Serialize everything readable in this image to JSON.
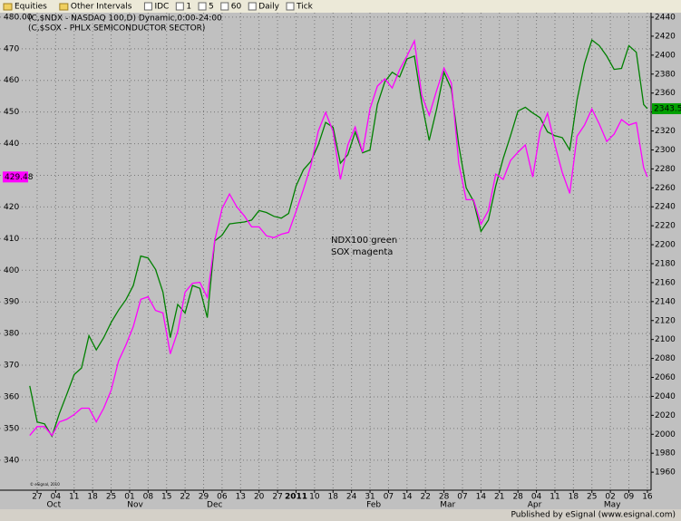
{
  "toolbar": [
    "Equities",
    "Other Intervals",
    "IDC",
    "1",
    "5",
    "60",
    "Daily",
    "Tick"
  ],
  "footer": "Published by eSignal (www.esignal.com)",
  "chart_data": {
    "type": "line",
    "annotations": [
      "NDX100 green",
      "SOX magenta"
    ],
    "watermark": "© eSignal, 2010",
    "grid": true,
    "x": [
      -2,
      0,
      2,
      4,
      6,
      8,
      10,
      12,
      14,
      16,
      18,
      20,
      22,
      24,
      26,
      28,
      30,
      32,
      34,
      36,
      38,
      40,
      42,
      44,
      46,
      48,
      50,
      52,
      54,
      56,
      58,
      60,
      62,
      64,
      66,
      68,
      70,
      72,
      74,
      76,
      78,
      80,
      82,
      84,
      86,
      88,
      90,
      92,
      94,
      96,
      98,
      100,
      102,
      104,
      106,
      108,
      110,
      112,
      114,
      116,
      118,
      120,
      122,
      124,
      126,
      128,
      130,
      132,
      134,
      136,
      138,
      140,
      142,
      144,
      146,
      148,
      150,
      152,
      154,
      156,
      158,
      160,
      162,
      164,
      165
    ],
    "xlim": [
      -10.05,
      166
    ],
    "xticks": [
      {
        "value": 0,
        "label": "27"
      },
      {
        "value": 5,
        "label": "04"
      },
      {
        "value": 10,
        "label": "11"
      },
      {
        "value": 15,
        "label": "18"
      },
      {
        "value": 20,
        "label": "25"
      },
      {
        "value": 25,
        "label": "01"
      },
      {
        "value": 30,
        "label": "08"
      },
      {
        "value": 35,
        "label": "15"
      },
      {
        "value": 40,
        "label": "22"
      },
      {
        "value": 45,
        "label": "29"
      },
      {
        "value": 50,
        "label": "06"
      },
      {
        "value": 55,
        "label": "13"
      },
      {
        "value": 60,
        "label": "20"
      },
      {
        "value": 65,
        "label": "27"
      },
      {
        "value": 70,
        "label": "2011"
      },
      {
        "value": 75,
        "label": "10"
      },
      {
        "value": 80,
        "label": "18"
      },
      {
        "value": 85,
        "label": "24"
      },
      {
        "value": 90,
        "label": "31"
      },
      {
        "value": 95,
        "label": "07"
      },
      {
        "value": 100,
        "label": "14"
      },
      {
        "value": 105,
        "label": "22"
      },
      {
        "value": 110,
        "label": "28"
      },
      {
        "value": 115,
        "label": "07"
      },
      {
        "value": 120,
        "label": "14"
      },
      {
        "value": 125,
        "label": "21"
      },
      {
        "value": 130,
        "label": "28"
      },
      {
        "value": 135,
        "label": "04"
      },
      {
        "value": 140,
        "label": "11"
      },
      {
        "value": 145,
        "label": "18"
      },
      {
        "value": 150,
        "label": "25"
      },
      {
        "value": 155,
        "label": "02"
      },
      {
        "value": 160,
        "label": "09"
      },
      {
        "value": 165,
        "label": "16"
      }
    ],
    "months": [
      {
        "value": 4.5,
        "label": "Oct"
      },
      {
        "value": 26.5,
        "label": "Nov"
      },
      {
        "value": 48,
        "label": "Dec"
      },
      {
        "value": 91,
        "label": "Feb"
      },
      {
        "value": 111,
        "label": "Mar"
      },
      {
        "value": 134.5,
        "label": "Apr"
      },
      {
        "value": 155.5,
        "label": "May"
      }
    ],
    "ylim": [
      330.5,
      481.4
    ],
    "yticks": [
      {
        "value": 480,
        "label": "480.00"
      },
      470,
      460,
      450,
      440,
      430,
      420,
      410,
      400,
      390,
      380,
      370,
      360,
      350,
      340
    ],
    "y2lim": [
      1941,
      2444.8
    ],
    "y2ticks": [
      2440,
      2420,
      2400,
      2380,
      2360,
      2340,
      2320,
      2300,
      2280,
      2260,
      2240,
      2220,
      2200,
      2180,
      2160,
      2140,
      2120,
      2100,
      2080,
      2060,
      2040,
      2020,
      2000,
      1980,
      1960
    ],
    "series": [
      {
        "name": "(C,$NDX - NASDAQ 100,D) Dynamic,0:00-24:00",
        "color": "#008000",
        "axis": "y2",
        "label_color": "#00a000",
        "values": [
          2051,
          2013,
          2011,
          1998,
          2022,
          2042,
          2063,
          2070,
          2104,
          2089,
          2102,
          2118,
          2131,
          2142,
          2157,
          2188,
          2186,
          2174,
          2150,
          2102,
          2137,
          2128,
          2157,
          2154,
          2123,
          2204,
          2210,
          2222,
          2223,
          2224,
          2226,
          2236,
          2234,
          2230,
          2228,
          2233,
          2262,
          2279,
          2288,
          2305,
          2329,
          2324,
          2286,
          2295,
          2319,
          2297,
          2300,
          2348,
          2372,
          2382,
          2377,
          2396,
          2399,
          2350,
          2310,
          2343,
          2382,
          2364,
          2305,
          2260,
          2246,
          2214,
          2226,
          2262,
          2291,
          2315,
          2341,
          2345,
          2339,
          2334,
          2319,
          2315,
          2313,
          2300,
          2353,
          2391,
          2416,
          2410,
          2399,
          2385,
          2386,
          2410,
          2403,
          2348,
          2343.51
        ]
      },
      {
        "name": "(C,$SOX - PHLX SEMICONDUCTOR SECTOR)",
        "color": "#ff00ff",
        "label_color": "#ff00ff",
        "values": [
          347.8,
          350.6,
          350.6,
          347.8,
          352.1,
          352.9,
          354.4,
          356.4,
          356.4,
          352.1,
          356.4,
          362.1,
          371.3,
          376.4,
          382.2,
          390.8,
          391.6,
          387.3,
          386.5,
          373.6,
          380.7,
          393.1,
          395.9,
          396.2,
          391.4,
          409.4,
          419.5,
          424.1,
          420.0,
          417.2,
          413.7,
          413.7,
          410.9,
          410.3,
          411.4,
          412.0,
          418.6,
          425.5,
          433.0,
          443.9,
          449.9,
          443.9,
          428.7,
          439.6,
          445.3,
          437.3,
          451.0,
          458.2,
          460.5,
          457.6,
          463.4,
          467.7,
          472.5,
          455.3,
          449.0,
          456.8,
          463.9,
          459.1,
          433.8,
          422.3,
          422.3,
          414.6,
          418.9,
          430.4,
          428.7,
          434.7,
          437.3,
          439.6,
          429.5,
          443.9,
          449.6,
          439.6,
          430.9,
          424.3,
          442.4,
          445.9,
          451.0,
          446.2,
          440.7,
          443.0,
          447.6,
          445.9,
          446.7,
          432.4,
          429.48
        ]
      }
    ]
  }
}
